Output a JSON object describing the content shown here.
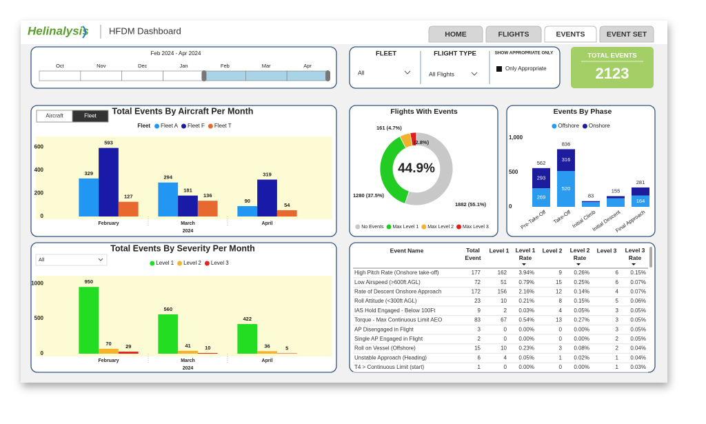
{
  "header": {
    "logo": "Helinalysis",
    "title": "HFDM Dashboard"
  },
  "tabs": [
    "HOME",
    "FLIGHTS",
    "EVENTS",
    "EVENT SET"
  ],
  "active_tab": 2,
  "date_slicer": {
    "label": "Feb 2024 - Apr 2024",
    "months": [
      "Oct",
      "Nov",
      "Dec",
      "Jan",
      "Feb",
      "Mar",
      "Apr"
    ]
  },
  "fleet_filter": {
    "title": "FLEET",
    "value": "All"
  },
  "flight_type_filter": {
    "title": "FLIGHT TYPE",
    "value": "All Flights"
  },
  "appropriate_filter": {
    "title": "SHOW APPROPRIATE ONLY",
    "option": "Only Appropriate"
  },
  "total_events": {
    "title": "TOTAL EVENTS",
    "value": 2123
  },
  "chart_data": [
    {
      "type": "bar",
      "title": "Total Events By Aircraft Per Month",
      "toggle": [
        "Aircraft",
        "Fleet"
      ],
      "legend_title": "Fleet",
      "categories": [
        "February",
        "March",
        "April"
      ],
      "x_label": "2024",
      "series": [
        {
          "name": "Fleet A",
          "color": "#2196f3",
          "values": [
            329,
            294,
            90
          ]
        },
        {
          "name": "Fleet F",
          "color": "#1a1aa8",
          "values": [
            593,
            181,
            319
          ]
        },
        {
          "name": "Fleet T",
          "color": "#e8692f",
          "values": [
            127,
            136,
            54
          ]
        }
      ],
      "ylim": [
        0,
        680
      ],
      "yticks": [
        0,
        200,
        400,
        600
      ]
    },
    {
      "type": "pie",
      "title": "Flights With Events",
      "center_label": "44.9%",
      "categories": [
        "No Events",
        "Max Level 1",
        "Max Level 2",
        "Max Level 3"
      ],
      "values": [
        1882,
        1280,
        161,
        95
      ],
      "value_labels": [
        "1882 (55.1%)",
        "1280 (37.5%)",
        "161 (4.7%)",
        "(2.8%)"
      ],
      "colors": [
        "#c8c8c8",
        "#22cc22",
        "#f0b22c",
        "#e01f1f"
      ]
    },
    {
      "type": "stacked_bar",
      "title": "Events By Phase",
      "categories": [
        "Pre-Take-Off",
        "Take-Off",
        "Initial Climb",
        "Initial Descent",
        "Final Approach"
      ],
      "series": [
        {
          "name": "Offshore",
          "color": "#2b9bf0",
          "values": [
            269,
            520,
            68,
            124,
            164
          ]
        },
        {
          "name": "Onshore",
          "color": "#1c1c9c",
          "values": [
            293,
            316,
            15,
            31,
            117
          ]
        }
      ],
      "totals": [
        562,
        836,
        83,
        155,
        281
      ],
      "ylim": [
        0,
        1100
      ],
      "yticks": [
        0,
        500,
        {
          "value": 1000,
          "label": "1,000"
        }
      ]
    },
    {
      "type": "bar",
      "title": "Total Events By Severity Per Month",
      "dropdown": "All",
      "categories": [
        "February",
        "March",
        "April"
      ],
      "x_label": "2024",
      "series": [
        {
          "name": "Level 1",
          "color": "#22dd22",
          "values": [
            950,
            560,
            422
          ]
        },
        {
          "name": "Level 2",
          "color": "#f7b12a",
          "values": [
            70,
            41,
            36
          ]
        },
        {
          "name": "Level 3",
          "color": "#e52222",
          "values": [
            29,
            10,
            5
          ]
        }
      ],
      "ylim": [
        0,
        1090
      ],
      "yticks": [
        0,
        500,
        1000
      ]
    }
  ],
  "table": {
    "columns": [
      "Event Name",
      "Total Event",
      "Level 1",
      "Level 1 Rate",
      "Level 2",
      "Level 2 Rate",
      "Level 3",
      "Level 3 Rate"
    ],
    "rows": [
      [
        "High Pitch Rate (Onshore take-off)",
        177,
        162,
        "3.94%",
        9,
        "0.26%",
        6,
        "0.15%"
      ],
      [
        "Low Airspeed (>600ft AGL)",
        72,
        51,
        "0.79%",
        15,
        "0.25%",
        6,
        "0.07%"
      ],
      [
        "Rate of Descent Onshore Approach",
        172,
        156,
        "2.16%",
        12,
        "0.14%",
        4,
        "0.07%"
      ],
      [
        "Roll Attitude (<300ft AGL)",
        23,
        10,
        "0.21%",
        8,
        "0.15%",
        5,
        "0.06%"
      ],
      [
        "IAS Hold Engaged - Below 100Ft",
        9,
        2,
        "0.03%",
        4,
        "0.05%",
        3,
        "0.05%"
      ],
      [
        "Torque - Max Continuous Limit AEO",
        83,
        67,
        "0.54%",
        13,
        "0.27%",
        3,
        "0.05%"
      ],
      [
        "AP Disengaged in Flight",
        3,
        0,
        "0.00%",
        0,
        "0.00%",
        3,
        "0.05%"
      ],
      [
        "Single AP Engaged in Flight",
        2,
        0,
        "0.00%",
        0,
        "0.00%",
        2,
        "0.05%"
      ],
      [
        "Roll on Vessel (Offshore)",
        15,
        10,
        "0.23%",
        3,
        "0.08%",
        2,
        "0.04%"
      ],
      [
        "Unstable Approach (Heading)",
        6,
        4,
        "0.05%",
        1,
        "0.02%",
        1,
        "0.04%"
      ],
      [
        "T4 > Continuous Limit (start)",
        1,
        0,
        "0.00%",
        0,
        "0.00%",
        1,
        "0.03%"
      ]
    ]
  }
}
